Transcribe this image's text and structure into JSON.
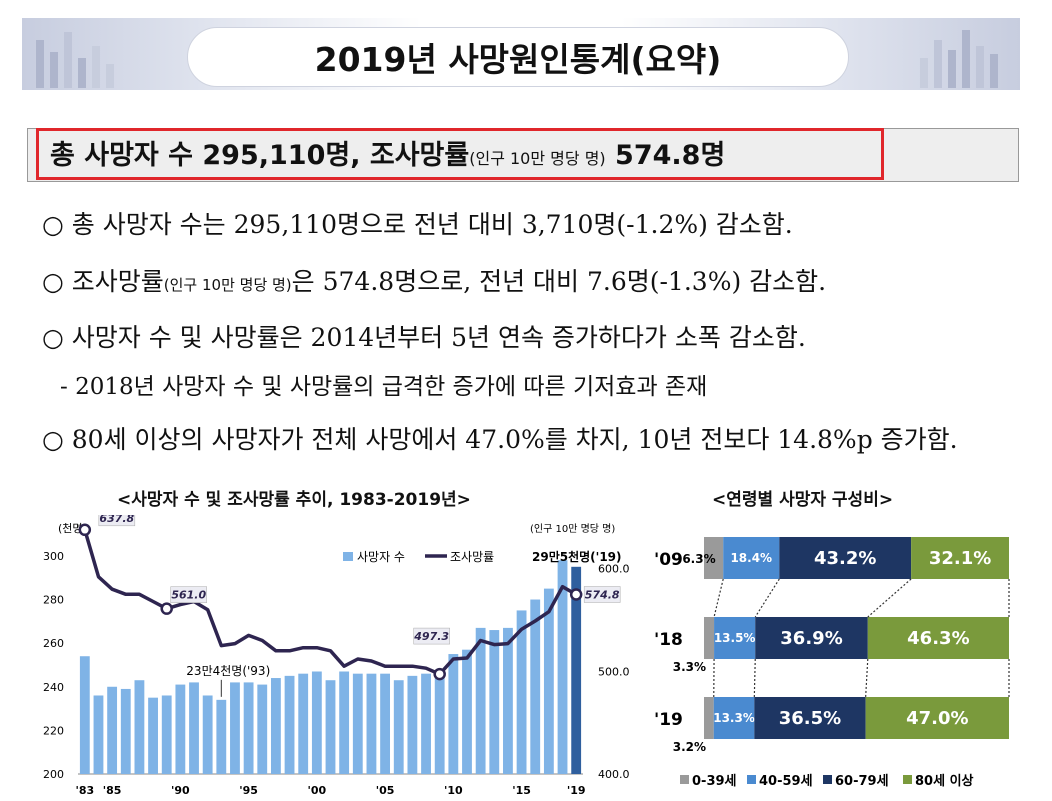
{
  "header": {
    "title": "2019년 사망원인통계(요약)"
  },
  "summary": {
    "part1": "총 사망자 수 295,110명, 조사망률",
    "part2": "(인구 10만 명당 명)",
    "part3": " 574.8명"
  },
  "bullets": {
    "b1": "○ 총 사망자 수는 295,110명으로 전년 대비 3,710명(-1.2%) 감소함.",
    "b2a": "○ 조사망률",
    "b2b": "(인구 10만 명당 명)",
    "b2c": "은 574.8명으로, 전년 대비 7.6명(-1.3%) 감소함.",
    "b3": "○ 사망자 수 및 사망률은 2014년부터 5년 연속 증가하다가 소폭 감소함.",
    "b3sub": "- 2018년 사망자 수 및 사망률의 급격한 증가에 따른 기저효과 존재",
    "b4": "○ 80세 이상의 사망자가 전체 사망에서 47.0%를 차지, 10년 전보다 14.8%p 증가함."
  },
  "chart_data": [
    {
      "type": "bar+line",
      "title": "<사망자 수 및 조사망률 추이, 1983-2019년>",
      "left_axis_unit": "(천명)",
      "right_axis_unit": "(인구 10만 명당 명)",
      "left_ylim": [
        200,
        305
      ],
      "left_ticks": [
        "200",
        "220",
        "240",
        "260",
        "280",
        "300"
      ],
      "right_ylim": [
        400,
        623
      ],
      "right_ticks": [
        "400.0",
        "500.0",
        "600.0"
      ],
      "x_ticks": [
        "'83",
        "'85",
        "'90",
        "'95",
        "'00",
        "'05",
        "'10",
        "'15",
        "'19"
      ],
      "legend": [
        "사망자 수",
        "조사망률"
      ],
      "years": [
        1983,
        1984,
        1985,
        1986,
        1987,
        1988,
        1989,
        1990,
        1991,
        1992,
        1993,
        1994,
        1995,
        1996,
        1997,
        1998,
        1999,
        2000,
        2001,
        2002,
        2003,
        2004,
        2005,
        2006,
        2007,
        2008,
        2009,
        2010,
        2011,
        2012,
        2013,
        2014,
        2015,
        2016,
        2017,
        2018,
        2019
      ],
      "deaths_thousand": [
        254,
        236,
        240,
        239,
        243,
        235,
        236,
        241,
        242,
        236,
        234,
        242,
        242,
        241,
        244,
        245,
        246,
        247,
        243,
        247,
        246,
        246,
        246,
        243,
        245,
        246,
        247,
        255,
        257,
        267,
        266,
        267,
        275,
        280,
        285,
        298,
        295
      ],
      "crude_rate": [
        637.8,
        592,
        580,
        575,
        575,
        568,
        561.0,
        565,
        568,
        560,
        525,
        527,
        535,
        530,
        520,
        520,
        523,
        523,
        520,
        505,
        512,
        510,
        505,
        505,
        505,
        503,
        497.3,
        512,
        513,
        530,
        526,
        527,
        541,
        549,
        558,
        582.4,
        574.8
      ],
      "annotations": {
        "peak": "637.8",
        "y1989": "561.0",
        "y2009": "497.3",
        "y2019": "574.8",
        "low_deaths": "23만4천명('93)",
        "latest_deaths": "29만5천명('19)"
      }
    },
    {
      "type": "stacked-bar",
      "title": "<연령별 사망자 구성비>",
      "categories": [
        "'09",
        "'18",
        "'19"
      ],
      "series": [
        {
          "name": "0-39세",
          "values": [
            6.3,
            3.3,
            3.2
          ],
          "labels": [
            "6.3%",
            "3.3%",
            "3.2%"
          ]
        },
        {
          "name": "40-59세",
          "values": [
            18.4,
            13.5,
            13.3
          ],
          "labels": [
            "18.4%",
            "13.5%",
            "13.3%"
          ]
        },
        {
          "name": "60-79세",
          "values": [
            43.2,
            36.9,
            36.5
          ],
          "labels": [
            "43.2%",
            "36.9%",
            "36.5%"
          ]
        },
        {
          "name": "80세 이상",
          "values": [
            32.1,
            46.3,
            47.0
          ],
          "labels": [
            "32.1%",
            "46.3%",
            "47.0%"
          ]
        }
      ],
      "colors": [
        "#9a9a9a",
        "#4a8ad0",
        "#1e3663",
        "#7a9a3c"
      ]
    }
  ]
}
